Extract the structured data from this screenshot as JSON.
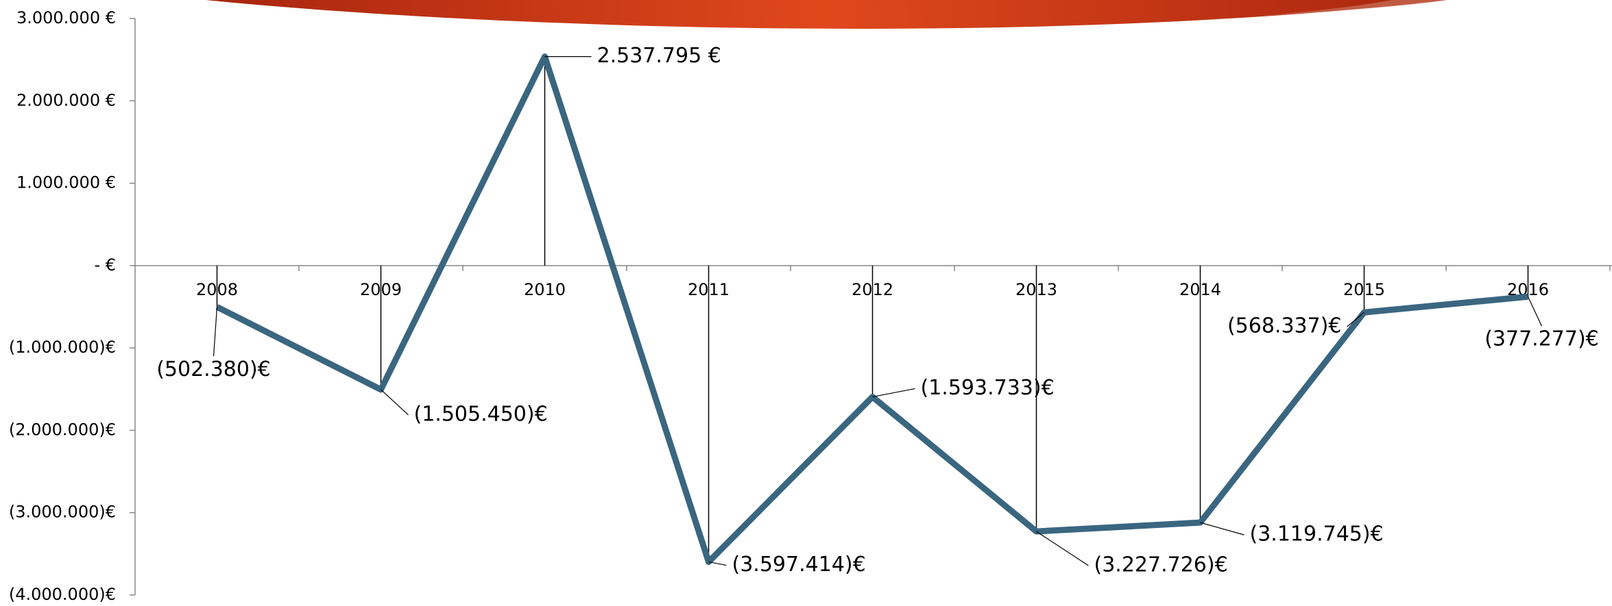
{
  "chart_data": {
    "type": "line",
    "categories": [
      "2008",
      "2009",
      "2010",
      "2011",
      "2012",
      "2013",
      "2014",
      "2015",
      "2016"
    ],
    "series": [
      {
        "color": "#3a6680",
        "values": [
          -502380,
          -1505450,
          2537795,
          -3597414,
          -1593733,
          -3227726,
          -3119745,
          -568337,
          -377277
        ],
        "value_labels": [
          "(502.380)€",
          "(1.505.450)€",
          "2.537.795 €",
          "(3.597.414)€",
          "(1.593.733)€",
          "(3.227.726)€",
          "(3.119.745)€",
          "(568.337)€",
          "(377.277)€"
        ]
      }
    ],
    "ylim": [
      -4000000,
      3000000
    ],
    "yticks": [
      {
        "value": -4000000,
        "label": "(4.000.000)€"
      },
      {
        "value": -3000000,
        "label": "(3.000.000)€"
      },
      {
        "value": -2000000,
        "label": "(2.000.000)€"
      },
      {
        "value": -1000000,
        "label": "(1.000.000)€"
      },
      {
        "value": 0,
        "label": "-   €"
      },
      {
        "value": 1000000,
        "label": "1.000.000 €"
      },
      {
        "value": 2000000,
        "label": "2.000.000 €"
      },
      {
        "value": 3000000,
        "label": "3.000.000 €"
      }
    ],
    "drop_lines": true
  }
}
